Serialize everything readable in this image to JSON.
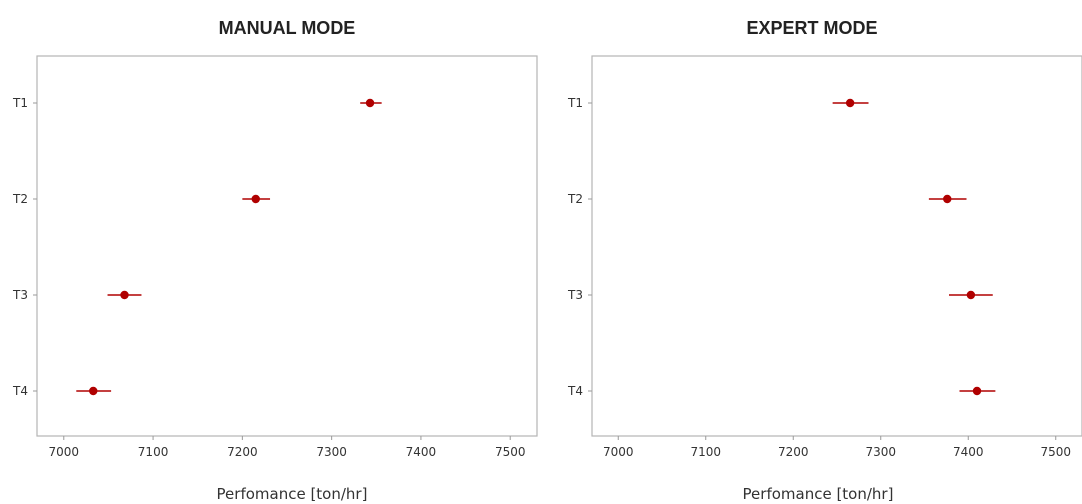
{
  "chart_data": [
    {
      "type": "scatter",
      "subtype": "errorbar",
      "title": "MANUAL MODE",
      "xlabel": "Perfomance [ton/hr]",
      "ylabel": "",
      "xlim": [
        6970,
        7530
      ],
      "xticks": [
        7000,
        7100,
        7200,
        7300,
        7400,
        7500
      ],
      "categories": [
        "T1",
        "T2",
        "T3",
        "T4"
      ],
      "series": [
        {
          "color": "#b00000",
          "points": [
            {
              "category": "T1",
              "value": 7343,
              "low": 7332,
              "high": 7356
            },
            {
              "category": "T2",
              "value": 7215,
              "low": 7200,
              "high": 7231
            },
            {
              "category": "T3",
              "value": 7068,
              "low": 7049,
              "high": 7087
            },
            {
              "category": "T4",
              "value": 7033,
              "low": 7014,
              "high": 7053
            }
          ]
        }
      ],
      "grid": false
    },
    {
      "type": "scatter",
      "subtype": "errorbar",
      "title": "EXPERT MODE",
      "xlabel": "Perfomance [ton/hr]",
      "ylabel": "",
      "xlim": [
        6970,
        7530
      ],
      "xticks": [
        7000,
        7100,
        7200,
        7300,
        7400,
        7500
      ],
      "categories": [
        "T1",
        "T2",
        "T3",
        "T4"
      ],
      "series": [
        {
          "color": "#b00000",
          "points": [
            {
              "category": "T1",
              "value": 7265,
              "low": 7245,
              "high": 7286
            },
            {
              "category": "T2",
              "value": 7376,
              "low": 7355,
              "high": 7398
            },
            {
              "category": "T3",
              "value": 7403,
              "low": 7378,
              "high": 7428
            },
            {
              "category": "T4",
              "value": 7410,
              "low": 7390,
              "high": 7431
            }
          ]
        }
      ],
      "grid": false
    }
  ]
}
